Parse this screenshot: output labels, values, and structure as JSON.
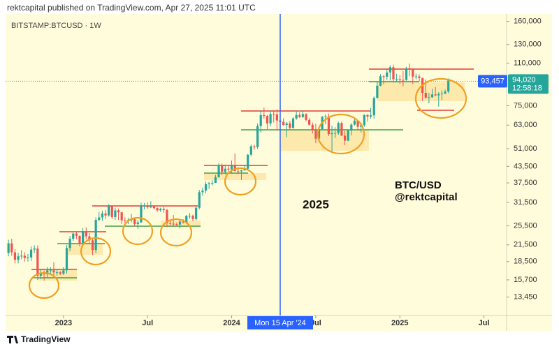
{
  "chart_data": {
    "type": "candlestick",
    "title": "rektcapital published on TradingView.com, Apr 27, 2025 11:01 UTC",
    "subtitle": "BITSTAMP:BTCUSD · 1W",
    "brand": "TradingView",
    "annotations": [
      "2025",
      "BTC/USD",
      "@rektcapital"
    ],
    "log_scale": true,
    "up_color": "#26a69a",
    "down_color": "#ef5350",
    "xlim": [
      -0.9,
      154
    ],
    "xticks": [
      {
        "value": 17,
        "label": "2023"
      },
      {
        "value": 43,
        "label": "Jul"
      },
      {
        "value": 69,
        "label": "2024"
      },
      {
        "value": 95,
        "label": "Jul"
      },
      {
        "value": 121,
        "label": "2025"
      },
      {
        "value": 147,
        "label": "Jul"
      }
    ],
    "ylim": [
      11400,
      171000
    ],
    "yticks": [
      {
        "value": 160000,
        "label": "160,000"
      },
      {
        "value": 130000,
        "label": "130,000"
      },
      {
        "value": 110000,
        "label": "110,000"
      },
      {
        "value": 75000,
        "label": "75,000"
      },
      {
        "value": 63000,
        "label": "63,000"
      },
      {
        "value": 51000,
        "label": "51,000"
      },
      {
        "value": 43500,
        "label": "43,500"
      },
      {
        "value": 37500,
        "label": "37,500"
      },
      {
        "value": 31500,
        "label": "31,500"
      },
      {
        "value": 25500,
        "label": "25,500"
      },
      {
        "value": 21500,
        "label": "21,500"
      },
      {
        "value": 18500,
        "label": "18,500"
      },
      {
        "value": 15700,
        "label": "15,700"
      },
      {
        "value": 13450,
        "label": "13,450"
      }
    ],
    "crosshair_x": {
      "value": 84,
      "label": "Mon 15 Apr '24"
    },
    "crosshair_price": {
      "value": 93457,
      "label": "93,457"
    },
    "last_price": {
      "value": 94020,
      "label": "94,020"
    },
    "countdown": "12:58:18",
    "open": [
      20000,
      21800,
      20100,
      18800,
      19400,
      19500,
      19100,
      19200,
      20600,
      20800,
      16300,
      16600,
      16500,
      17100,
      17100,
      16800,
      16800,
      16600,
      17100,
      20900,
      22700,
      23800,
      23300,
      21800,
      24300,
      23200,
      22400,
      20500,
      26900,
      27500,
      28500,
      28000,
      30400,
      27600,
      29300,
      28800,
      26800,
      26700,
      26800,
      27100,
      25900,
      26300,
      30500,
      30500,
      30200,
      30300,
      29900,
      29300,
      29700,
      29400,
      26100,
      26000,
      25900,
      25800,
      26500,
      26300,
      27900,
      27900,
      27100,
      30000,
      34500,
      35000,
      37100,
      37400,
      37500,
      39500,
      44000,
      41400,
      42600,
      42300,
      43900,
      41700,
      41600,
      42000,
      42600,
      48300,
      52100,
      51700,
      62500,
      68900,
      68400,
      64000,
      69600,
      69400,
      65700,
      64900,
      63100,
      64000,
      61500,
      66900,
      69000,
      67800,
      69600,
      66000,
      63200,
      60300,
      55800,
      60800,
      67900,
      68200,
      58100,
      58700,
      58700,
      64200,
      57300,
      54800,
      60000,
      63300,
      65600,
      62100,
      63000,
      69000,
      68000,
      68800,
      80400,
      89800,
      97700,
      97300,
      101100,
      106000,
      95200,
      95300,
      94600,
      94500,
      105000,
      104700,
      97400,
      97500,
      96100,
      84200,
      80700,
      80900,
      83000,
      82300,
      83400,
      83700,
      85200
    ],
    "high": [
      22500,
      22700,
      20700,
      20000,
      20500,
      20100,
      19800,
      21200,
      21400,
      21400,
      17200,
      17100,
      17600,
      17600,
      18400,
      17300,
      17000,
      17600,
      21500,
      23300,
      24000,
      24200,
      23400,
      25000,
      25200,
      23900,
      22600,
      27500,
      28900,
      29200,
      29400,
      31000,
      30500,
      30000,
      29800,
      28900,
      27500,
      27400,
      28400,
      27400,
      26800,
      31400,
      31300,
      31500,
      31800,
      30600,
      30100,
      30000,
      30200,
      29700,
      26800,
      28100,
      26300,
      27000,
      27100,
      28100,
      28600,
      28200,
      30300,
      35200,
      35900,
      38000,
      37900,
      38400,
      40300,
      44700,
      44600,
      44200,
      43800,
      45900,
      48900,
      43200,
      42200,
      43800,
      48600,
      52900,
      52900,
      64000,
      72000,
      73800,
      68900,
      71700,
      71300,
      72700,
      67200,
      67000,
      64700,
      65500,
      67700,
      71900,
      70600,
      71900,
      70100,
      67200,
      64500,
      63800,
      61400,
      68400,
      69400,
      70000,
      62700,
      61800,
      65000,
      64900,
      59800,
      60600,
      64100,
      66400,
      65700,
      64400,
      69400,
      69500,
      73600,
      81500,
      93500,
      99600,
      98800,
      104000,
      107800,
      108400,
      99900,
      98900,
      102700,
      106400,
      109600,
      105000,
      100100,
      99500,
      96500,
      95000,
      84300,
      87400,
      88800,
      84700,
      86100,
      86600,
      95800
    ],
    "low": [
      19400,
      19500,
      18200,
      18200,
      18900,
      18500,
      18500,
      18600,
      20000,
      15700,
      15800,
      15600,
      16000,
      16600,
      16300,
      16300,
      16400,
      16400,
      16600,
      20300,
      22300,
      22600,
      21200,
      21400,
      22600,
      21800,
      19600,
      19900,
      26600,
      26700,
      27200,
      27700,
      27100,
      26900,
      26900,
      25900,
      26000,
      25900,
      26300,
      25400,
      24800,
      26200,
      29600,
      29700,
      29900,
      29500,
      28900,
      28900,
      28700,
      25200,
      25700,
      25400,
      25400,
      24900,
      26000,
      26000,
      27200,
      26600,
      26800,
      29600,
      33400,
      34200,
      35500,
      36700,
      37500,
      39300,
      40200,
      40500,
      41500,
      40900,
      41600,
      40600,
      38500,
      41800,
      42300,
      47600,
      50500,
      50900,
      59000,
      66800,
      60800,
      62300,
      64500,
      60000,
      59700,
      62800,
      56600,
      60200,
      60900,
      66100,
      67100,
      67200,
      65100,
      62800,
      58400,
      53600,
      54300,
      60500,
      63500,
      57100,
      49000,
      56100,
      57800,
      57200,
      52600,
      54600,
      57500,
      62800,
      60100,
      59000,
      62100,
      65100,
      66800,
      66800,
      80200,
      89400,
      90800,
      94500,
      94200,
      92200,
      92500,
      91300,
      89300,
      93900,
      97800,
      91200,
      94900,
      93300,
      78200,
      79700,
      76600,
      80600,
      81600,
      74400,
      78900,
      83100,
      83900
    ],
    "close": [
      21800,
      20100,
      18800,
      19400,
      19500,
      19100,
      19200,
      20600,
      20800,
      16300,
      16600,
      16500,
      17100,
      17100,
      16800,
      16800,
      16600,
      17100,
      20900,
      22700,
      23800,
      23300,
      21800,
      24300,
      23200,
      22400,
      20500,
      26900,
      27500,
      28500,
      28000,
      30400,
      27600,
      29300,
      28800,
      26800,
      26700,
      26800,
      27100,
      25900,
      26300,
      30500,
      30500,
      30200,
      30300,
      29900,
      29300,
      29700,
      29400,
      26100,
      26000,
      25900,
      25800,
      26500,
      26300,
      27900,
      27900,
      27100,
      30000,
      34500,
      35000,
      37100,
      37400,
      37500,
      39500,
      44000,
      41400,
      42600,
      42300,
      43900,
      41700,
      41600,
      42000,
      42600,
      48300,
      52100,
      51700,
      62500,
      68900,
      68400,
      64000,
      69600,
      69400,
      65700,
      64900,
      63100,
      64000,
      61500,
      66900,
      69000,
      67800,
      69600,
      66000,
      63200,
      60300,
      55800,
      60800,
      67900,
      68200,
      58100,
      58700,
      58700,
      64200,
      57300,
      54800,
      60000,
      63300,
      65600,
      62100,
      63000,
      69000,
      68000,
      68800,
      80400,
      89800,
      97700,
      97300,
      101100,
      106000,
      95200,
      95300,
      94600,
      94500,
      105000,
      104700,
      97400,
      97500,
      96100,
      84200,
      80700,
      80900,
      83000,
      82300,
      83400,
      83700,
      85200,
      94020
    ]
  }
}
